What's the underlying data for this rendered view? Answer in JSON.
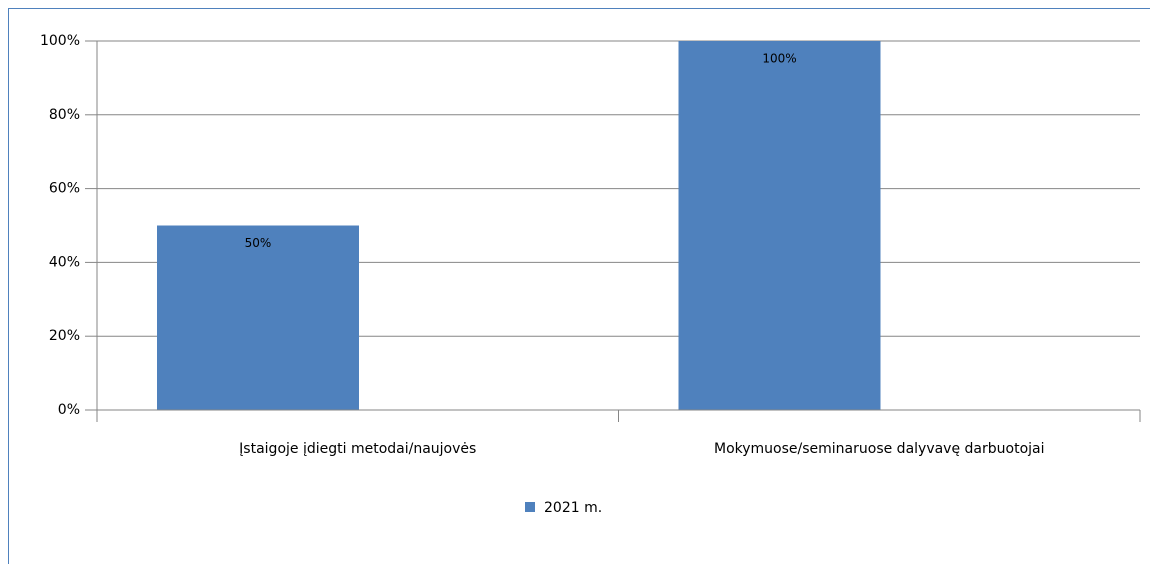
{
  "chart_data": {
    "type": "bar",
    "categories": [
      "Įstaigoje įdiegti metodai/naujovės",
      "Mokymuose/seminaruose dalyvavę darbuotojai"
    ],
    "series": [
      {
        "name": "2021 m.",
        "color": "#4f81bd",
        "values": [
          50,
          100
        ],
        "value_labels": [
          "50%",
          "100%"
        ]
      }
    ],
    "ylim": [
      0,
      100
    ],
    "yticks": [
      {
        "value": 0,
        "label": "0%"
      },
      {
        "value": 20,
        "label": "20%"
      },
      {
        "value": 40,
        "label": "40%"
      },
      {
        "value": 60,
        "label": "60%"
      },
      {
        "value": 80,
        "label": "80%"
      },
      {
        "value": 100,
        "label": "100%"
      }
    ],
    "grid": true,
    "legend": "bottom"
  }
}
